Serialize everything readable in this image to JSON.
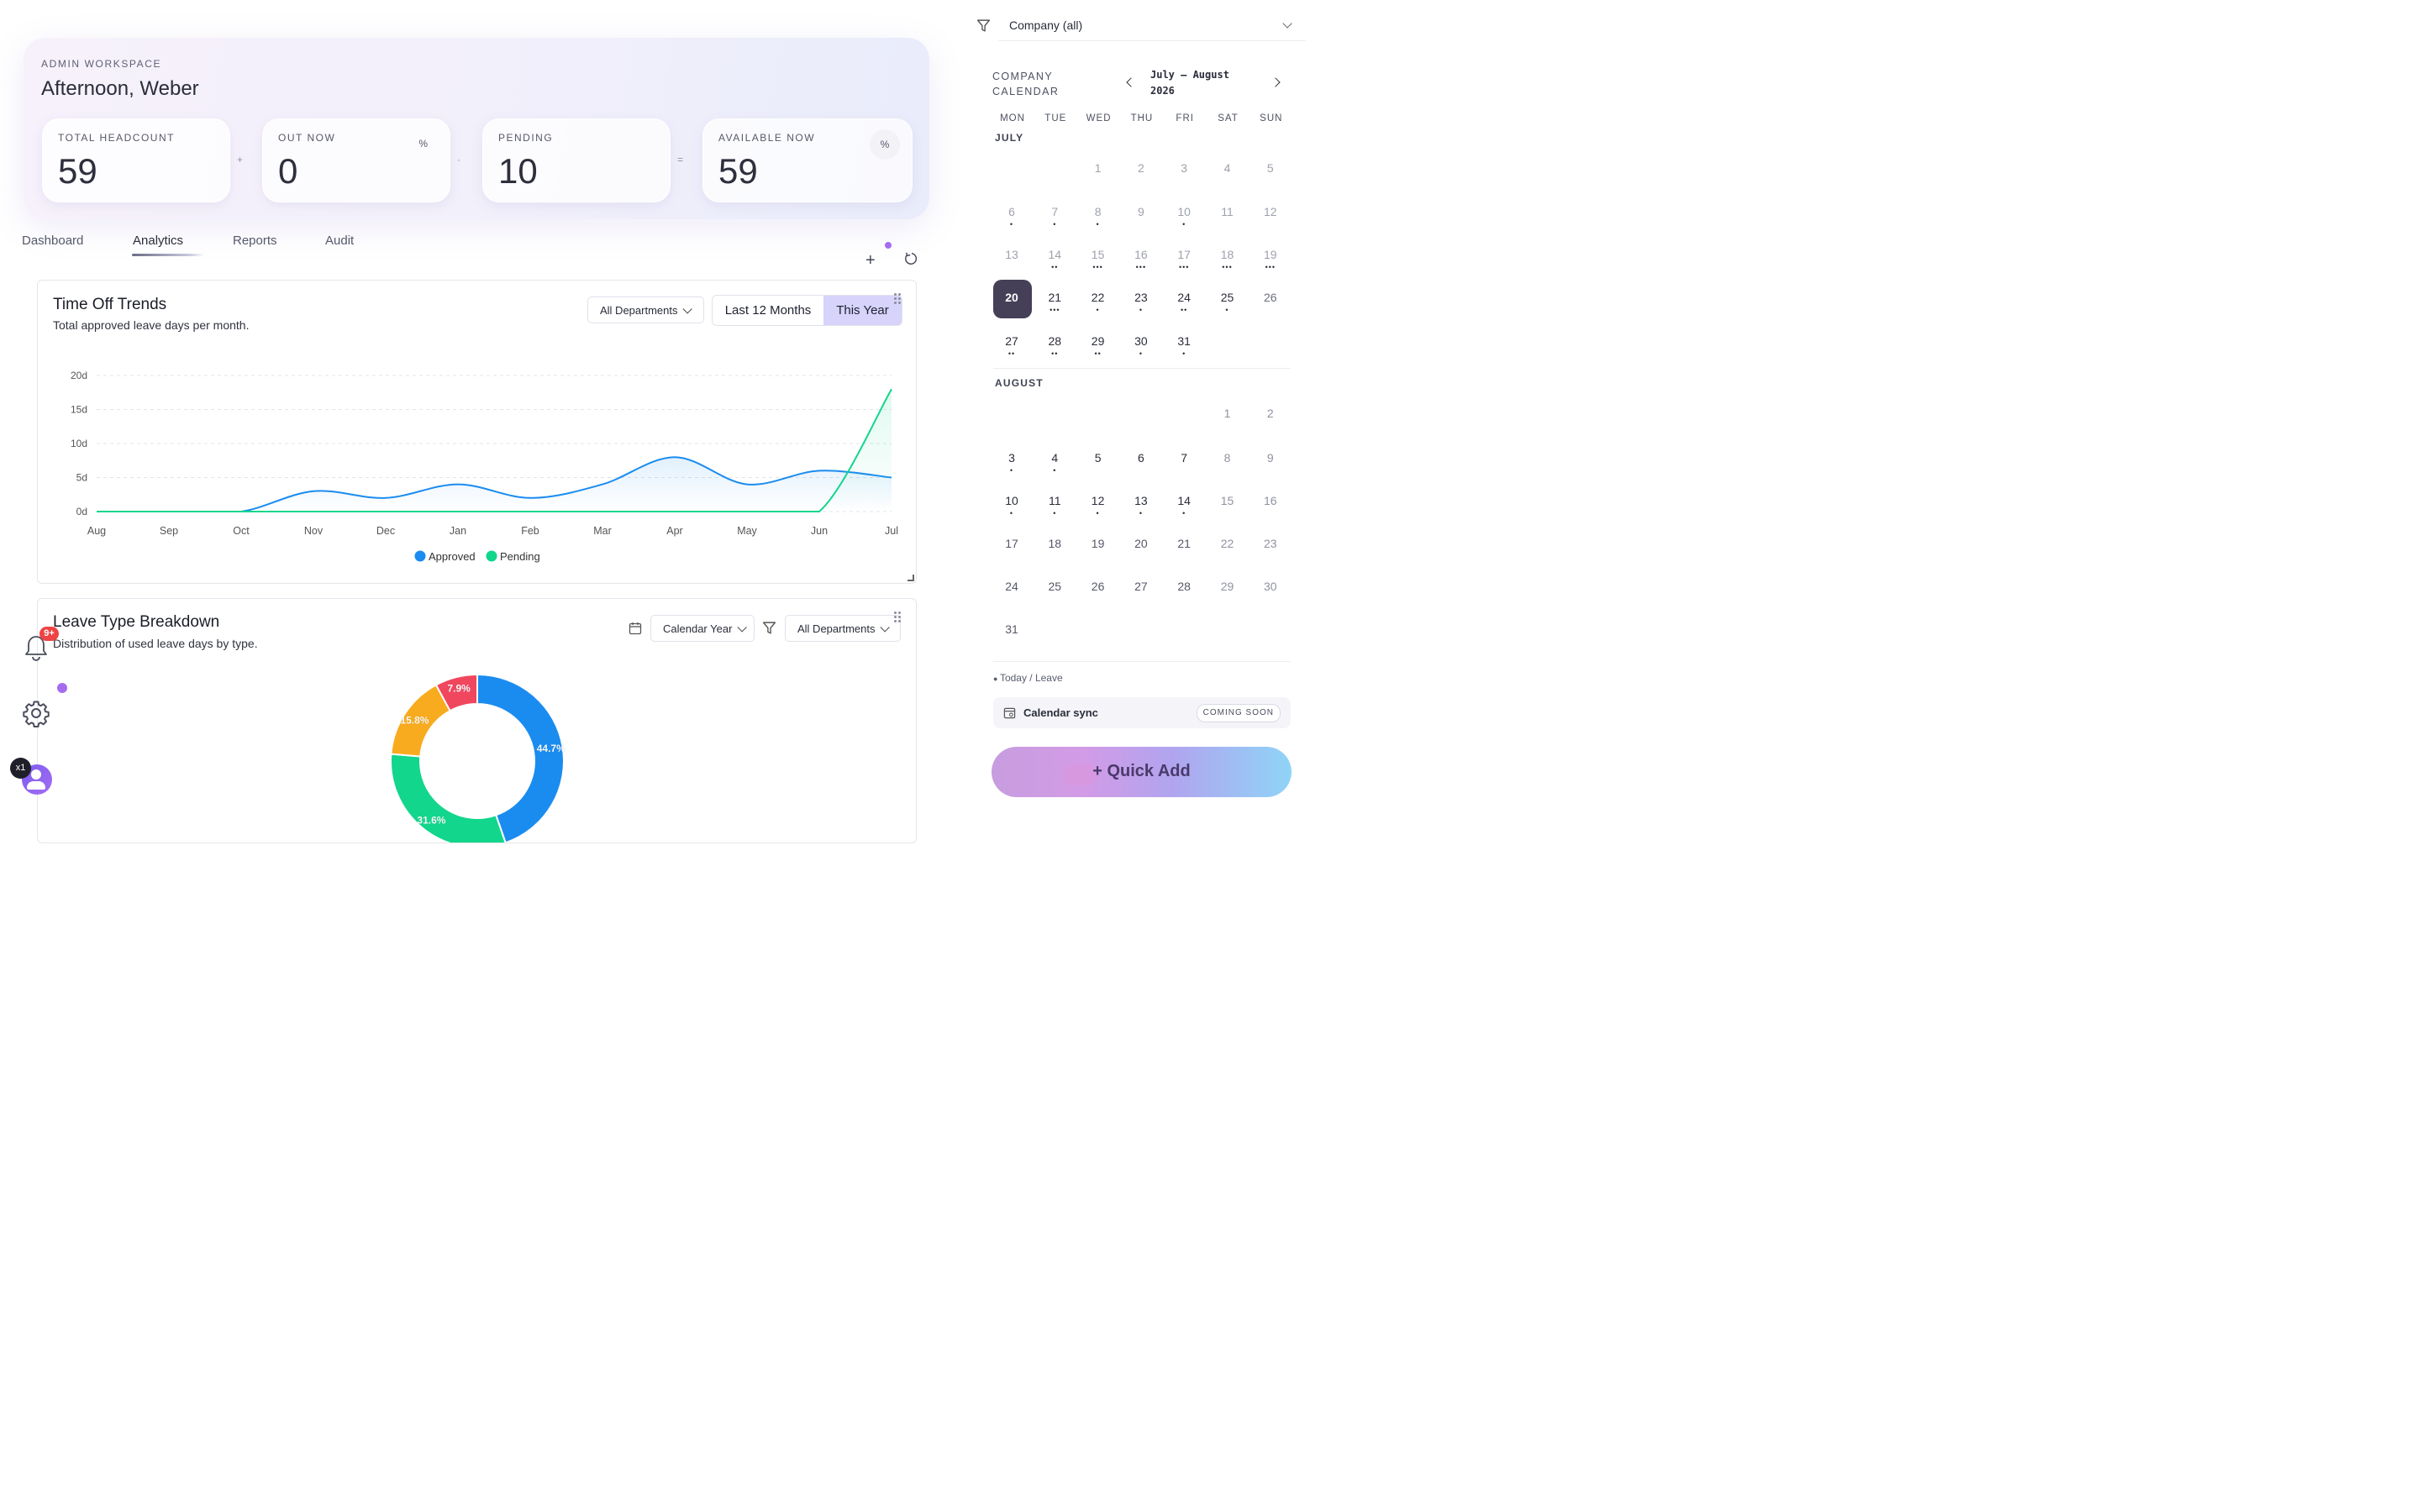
{
  "hero": {
    "kicker": "ADMIN WORKSPACE",
    "greeting": "Afternoon, Weber",
    "stats": [
      {
        "label": "TOTAL HEADCOUNT",
        "value": "59"
      },
      {
        "label": "OUT NOW",
        "value": "0",
        "unit": "%"
      },
      {
        "label": "PENDING",
        "value": "10"
      },
      {
        "label": "AVAILABLE NOW",
        "value": "59",
        "unit": "%"
      }
    ],
    "operators": [
      "+",
      "·",
      "="
    ]
  },
  "tabs": [
    {
      "label": "Dashboard"
    },
    {
      "label": "Analytics",
      "active": true
    },
    {
      "label": "Reports"
    },
    {
      "label": "Audit"
    }
  ],
  "toolbar": {
    "add": "+",
    "refresh": "↻"
  },
  "trends": {
    "title": "Time Off Trends",
    "subtitle": "Total approved leave days per month.",
    "department_filter": "All Departments",
    "range_options": [
      "Last 12 Months",
      "This Year"
    ],
    "range_selected": "This Year"
  },
  "breakdown": {
    "title": "Leave Type Breakdown",
    "subtitle": "Distribution of used leave days by type.",
    "period_filter": "Calendar Year",
    "department_filter": "All Departments"
  },
  "chart_data": [
    {
      "type": "line",
      "x": [
        "Aug",
        "Sep",
        "Oct",
        "Nov",
        "Dec",
        "Jan",
        "Feb",
        "Mar",
        "Apr",
        "May",
        "Jun",
        "Jul"
      ],
      "y_ticks": [
        "0d",
        "5d",
        "10d",
        "15d",
        "20d"
      ],
      "ylim": [
        0,
        20
      ],
      "grid": true,
      "legend": "bottom",
      "series": [
        {
          "name": "Approved",
          "color": "#1a8cf0",
          "values": [
            0,
            0,
            0,
            3,
            2,
            4,
            2,
            4,
            8,
            4,
            6,
            5
          ]
        },
        {
          "name": "Pending",
          "color": "#12d68c",
          "values": [
            0,
            0,
            0,
            0,
            0,
            0,
            0,
            0,
            0,
            0,
            0,
            18
          ]
        }
      ]
    },
    {
      "type": "pie",
      "donut": true,
      "slices": [
        {
          "label": "44.7%",
          "value": 44.7,
          "color": "#1a8cf0"
        },
        {
          "label": "31.6%",
          "value": 31.6,
          "color": "#12d68c"
        },
        {
          "label": "15.8%",
          "value": 15.8,
          "color": "#f8ab1e"
        },
        {
          "label": "7.9%",
          "value": 7.9,
          "color": "#f0475f"
        }
      ]
    }
  ],
  "sidebar": {
    "notifications_badge": "9+",
    "avatar_badge": "x1"
  },
  "calendar": {
    "company_filter": "Company (all)",
    "kicker_line1": "COMPANY",
    "kicker_line2": "CALENDAR",
    "range_line1": "July – August",
    "range_line2": "2026",
    "weekdays": [
      "MON",
      "TUE",
      "WED",
      "THU",
      "FRI",
      "SAT",
      "SUN"
    ],
    "months": [
      {
        "label": "JULY",
        "start_weekday": 2,
        "days": 31,
        "today": 20,
        "dots": {
          "6": 1,
          "7": 1,
          "8": 1,
          "10": 1,
          "14": 2,
          "15": 3,
          "16": 3,
          "17": 3,
          "18": 3,
          "19": 3,
          "21": 3,
          "22": 1,
          "23": 1,
          "24": 2,
          "25": 1,
          "27": 2,
          "28": 2,
          "29": 2,
          "30": 1,
          "31": 1
        },
        "muted_before": 20,
        "muted_weekend_after": true
      },
      {
        "label": "AUGUST",
        "start_weekday": 5,
        "days": 31,
        "dots": {
          "3": 1,
          "4": 1,
          "10": 1,
          "11": 1,
          "12": 1,
          "13": 1,
          "14": 1
        },
        "muted_weekend": true
      }
    ],
    "legend": "Today / Leave",
    "sync_label": "Calendar sync",
    "sync_badge": "COMING SOON",
    "quick_add": "+ Quick Add",
    "accent": "#454058"
  }
}
